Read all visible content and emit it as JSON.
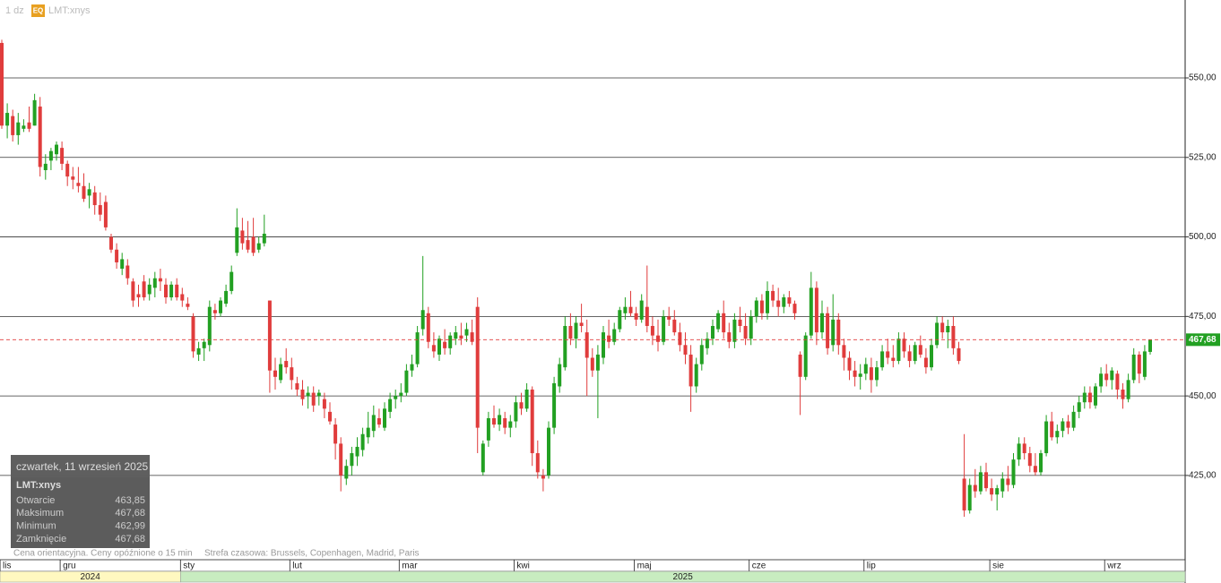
{
  "chart_data": {
    "type": "candlestick",
    "title": "1 dz",
    "badge": "EQ",
    "symbol": "LMT:xnys",
    "up_color": "#22a022",
    "down_color": "#e03c3c",
    "grid": true,
    "ylim": [
      398.5,
      574.5
    ],
    "yticks": [
      {
        "value": 425,
        "label": "425,00"
      },
      {
        "value": 450,
        "label": "450,00"
      },
      {
        "value": 475,
        "label": "475,00"
      },
      {
        "value": 500,
        "label": "500,00"
      },
      {
        "value": 525,
        "label": "525,00"
      },
      {
        "value": 550,
        "label": "550,00"
      }
    ],
    "last_price": {
      "value": 467.68,
      "label": "467,68"
    },
    "xticks": [
      {
        "value": 0,
        "label": "lis"
      },
      {
        "value": 11,
        "label": "gru"
      },
      {
        "value": 33,
        "label": "sty"
      },
      {
        "value": 53,
        "label": "lut"
      },
      {
        "value": 73,
        "label": "mar"
      },
      {
        "value": 94,
        "label": "kwi"
      },
      {
        "value": 116,
        "label": "maj"
      },
      {
        "value": 137,
        "label": "cze"
      },
      {
        "value": 158,
        "label": "lip"
      },
      {
        "value": 181,
        "label": "sie"
      },
      {
        "value": 202,
        "label": "wrz"
      }
    ],
    "years": [
      {
        "value": 0,
        "label": "2024"
      },
      {
        "value": 33,
        "label": "2025"
      }
    ],
    "ohlc": [
      [
        561,
        562,
        534,
        535
      ],
      [
        535,
        542,
        531,
        539
      ],
      [
        538,
        540,
        530,
        532
      ],
      [
        532,
        539,
        529,
        536
      ],
      [
        534,
        537,
        533,
        535
      ],
      [
        536,
        541,
        533,
        534
      ],
      [
        535,
        545,
        535,
        543
      ],
      [
        541,
        544,
        519,
        522
      ],
      [
        521,
        526,
        518,
        523
      ],
      [
        524,
        528,
        521,
        527
      ],
      [
        526,
        530,
        524,
        529
      ],
      [
        528,
        530,
        521,
        523
      ],
      [
        523,
        524,
        516,
        519
      ],
      [
        519,
        522,
        515,
        518
      ],
      [
        517,
        522,
        514,
        516
      ],
      [
        516,
        520,
        511,
        512
      ],
      [
        513,
        517,
        509,
        515
      ],
      [
        514,
        516,
        507,
        510
      ],
      [
        510,
        514,
        505,
        507
      ],
      [
        511,
        513,
        502,
        503
      ],
      [
        500,
        501,
        495,
        496
      ],
      [
        496,
        498,
        490,
        492
      ],
      [
        490,
        495,
        488,
        493
      ],
      [
        491,
        493,
        485,
        487
      ],
      [
        486,
        487,
        478,
        480
      ],
      [
        482,
        485,
        478,
        481
      ],
      [
        486,
        488,
        480,
        481
      ],
      [
        482,
        487,
        480,
        485
      ],
      [
        484,
        489,
        481,
        487
      ],
      [
        487,
        490,
        483,
        486
      ],
      [
        485,
        487,
        479,
        481
      ],
      [
        481,
        486,
        480,
        485
      ],
      [
        485,
        487,
        480,
        481
      ],
      [
        482,
        484,
        478,
        480
      ],
      [
        479,
        481,
        477,
        478
      ],
      [
        475,
        476,
        462,
        464
      ],
      [
        463,
        467,
        461,
        465
      ],
      [
        465,
        468,
        461,
        467
      ],
      [
        466,
        480,
        464,
        478
      ],
      [
        477,
        479,
        474,
        476
      ],
      [
        476,
        481,
        475,
        480
      ],
      [
        479,
        485,
        478,
        483
      ],
      [
        483,
        491,
        482,
        489
      ],
      [
        495,
        509,
        494,
        503
      ],
      [
        502,
        506,
        496,
        498
      ],
      [
        499,
        505,
        495,
        496
      ],
      [
        500,
        506,
        494,
        495
      ],
      [
        496,
        500,
        495,
        498
      ],
      [
        498,
        507,
        497,
        501
      ],
      [
        480,
        480,
        451,
        458
      ],
      [
        458,
        462,
        452,
        456
      ],
      [
        455,
        462,
        454,
        460
      ],
      [
        461,
        465,
        457,
        459
      ],
      [
        459,
        462,
        452,
        455
      ],
      [
        454,
        456,
        450,
        452
      ],
      [
        452,
        455,
        447,
        449
      ],
      [
        450,
        453,
        446,
        451
      ],
      [
        451,
        453,
        445,
        447
      ],
      [
        450,
        452,
        447,
        451
      ],
      [
        449,
        451,
        443,
        446
      ],
      [
        445,
        448,
        441,
        442
      ],
      [
        441,
        443,
        430,
        435
      ],
      [
        435,
        437,
        420,
        425
      ],
      [
        424,
        430,
        422,
        428
      ],
      [
        428,
        434,
        425,
        432
      ],
      [
        431,
        437,
        428,
        434
      ],
      [
        433,
        440,
        431,
        438
      ],
      [
        437,
        445,
        435,
        440
      ],
      [
        439,
        447,
        437,
        444
      ],
      [
        443,
        446,
        440,
        441
      ],
      [
        440,
        448,
        439,
        446
      ],
      [
        445,
        451,
        443,
        449
      ],
      [
        449,
        452,
        446,
        450
      ],
      [
        450,
        454,
        448,
        451
      ],
      [
        451,
        460,
        450,
        458
      ],
      [
        458,
        463,
        456,
        460
      ],
      [
        460,
        472,
        459,
        470
      ],
      [
        471,
        494,
        469,
        477
      ],
      [
        476,
        478,
        465,
        467
      ],
      [
        466,
        470,
        462,
        464
      ],
      [
        463,
        469,
        461,
        468
      ],
      [
        467,
        471,
        463,
        465
      ],
      [
        465,
        470,
        463,
        469
      ],
      [
        468,
        472,
        466,
        470
      ],
      [
        469,
        473,
        466,
        468
      ],
      [
        469,
        473,
        467,
        471
      ],
      [
        470,
        474,
        466,
        467
      ],
      [
        478,
        481,
        432,
        440
      ],
      [
        426,
        436,
        425,
        435
      ],
      [
        436,
        445,
        434,
        443
      ],
      [
        443,
        447,
        440,
        441
      ],
      [
        441,
        446,
        439,
        444
      ],
      [
        443,
        445,
        438,
        440
      ],
      [
        440,
        444,
        437,
        442
      ],
      [
        442,
        450,
        440,
        448
      ],
      [
        448,
        451,
        444,
        446
      ],
      [
        446,
        454,
        445,
        452
      ],
      [
        452,
        453,
        428,
        432
      ],
      [
        432,
        436,
        424,
        426
      ],
      [
        425,
        427,
        420,
        424
      ],
      [
        425,
        442,
        424,
        440
      ],
      [
        440,
        456,
        438,
        454
      ],
      [
        453,
        462,
        451,
        460
      ],
      [
        459,
        475,
        458,
        472
      ],
      [
        472,
        476,
        466,
        468
      ],
      [
        468,
        475,
        465,
        473
      ],
      [
        473,
        479,
        470,
        472
      ],
      [
        470,
        474,
        450,
        462
      ],
      [
        462,
        465,
        456,
        458
      ],
      [
        458,
        466,
        443,
        463
      ],
      [
        462,
        472,
        460,
        470
      ],
      [
        469,
        474,
        465,
        467
      ],
      [
        467,
        473,
        466,
        471
      ],
      [
        471,
        478,
        470,
        477
      ],
      [
        476,
        481,
        474,
        478
      ],
      [
        478,
        483,
        475,
        476
      ],
      [
        476,
        478,
        472,
        474
      ],
      [
        474,
        482,
        473,
        480
      ],
      [
        478,
        491,
        470,
        472
      ],
      [
        472,
        475,
        466,
        469
      ],
      [
        469,
        474,
        464,
        467
      ],
      [
        467,
        477,
        466,
        475
      ],
      [
        475,
        478,
        472,
        474
      ],
      [
        474,
        477,
        469,
        470
      ],
      [
        470,
        473,
        464,
        466
      ],
      [
        466,
        470,
        460,
        463
      ],
      [
        463,
        466,
        445,
        453
      ],
      [
        453,
        462,
        451,
        460
      ],
      [
        460,
        468,
        458,
        466
      ],
      [
        465,
        470,
        463,
        468
      ],
      [
        468,
        474,
        466,
        472
      ],
      [
        471,
        477,
        470,
        476
      ],
      [
        476,
        480,
        468,
        470
      ],
      [
        470,
        473,
        465,
        467
      ],
      [
        467,
        476,
        465,
        474
      ],
      [
        474,
        478,
        470,
        472
      ],
      [
        472,
        476,
        466,
        468
      ],
      [
        468,
        477,
        466,
        475
      ],
      [
        475,
        481,
        473,
        480
      ],
      [
        480,
        482,
        474,
        476
      ],
      [
        476,
        486,
        474,
        483
      ],
      [
        483,
        485,
        478,
        480
      ],
      [
        480,
        484,
        475,
        478
      ],
      [
        478,
        482,
        476,
        481
      ],
      [
        481,
        483,
        478,
        479
      ],
      [
        479,
        480,
        474,
        476
      ],
      [
        463,
        464,
        444,
        456
      ],
      [
        456,
        470,
        455,
        469
      ],
      [
        469,
        489,
        468,
        484
      ],
      [
        484,
        486,
        466,
        470
      ],
      [
        470,
        480,
        468,
        476
      ],
      [
        476,
        478,
        463,
        465
      ],
      [
        466,
        482,
        464,
        474
      ],
      [
        474,
        476,
        463,
        466
      ],
      [
        466,
        468,
        458,
        462
      ],
      [
        462,
        464,
        455,
        458
      ],
      [
        458,
        461,
        453,
        456
      ],
      [
        456,
        460,
        452,
        457
      ],
      [
        457,
        462,
        455,
        460
      ],
      [
        459,
        462,
        451,
        455
      ],
      [
        455,
        461,
        453,
        459
      ],
      [
        459,
        466,
        458,
        464
      ],
      [
        464,
        468,
        460,
        462
      ],
      [
        462,
        466,
        459,
        461
      ],
      [
        461,
        470,
        460,
        468
      ],
      [
        468,
        470,
        462,
        464
      ],
      [
        464,
        466,
        459,
        461
      ],
      [
        461,
        467,
        460,
        466
      ],
      [
        466,
        469,
        462,
        463
      ],
      [
        462,
        465,
        457,
        459
      ],
      [
        459,
        468,
        458,
        466
      ],
      [
        466,
        475,
        465,
        473
      ],
      [
        473,
        475,
        468,
        470
      ],
      [
        470,
        474,
        465,
        472
      ],
      [
        472,
        475,
        463,
        465
      ],
      [
        465,
        467,
        460,
        461
      ],
      [
        424,
        438,
        412,
        414
      ],
      [
        414,
        424,
        413,
        422
      ],
      [
        422,
        427,
        418,
        420
      ],
      [
        420,
        428,
        419,
        426
      ],
      [
        426,
        429,
        420,
        421
      ],
      [
        421,
        424,
        417,
        419
      ],
      [
        419,
        422,
        414,
        421
      ],
      [
        420,
        426,
        418,
        424
      ],
      [
        424,
        428,
        420,
        422
      ],
      [
        422,
        432,
        421,
        430
      ],
      [
        430,
        437,
        428,
        435
      ],
      [
        435,
        437,
        430,
        432
      ],
      [
        432,
        434,
        426,
        428
      ],
      [
        428,
        432,
        425,
        426
      ],
      [
        426,
        433,
        425,
        432
      ],
      [
        432,
        444,
        431,
        442
      ],
      [
        442,
        445,
        436,
        437
      ],
      [
        437,
        441,
        435,
        439
      ],
      [
        439,
        443,
        437,
        442
      ],
      [
        442,
        444,
        438,
        440
      ],
      [
        440,
        447,
        439,
        445
      ],
      [
        445,
        450,
        443,
        448
      ],
      [
        448,
        453,
        446,
        451
      ],
      [
        451,
        453,
        446,
        448
      ],
      [
        447,
        454,
        446,
        453
      ],
      [
        453,
        459,
        451,
        457
      ],
      [
        457,
        460,
        453,
        455
      ],
      [
        455,
        459,
        452,
        458
      ],
      [
        457,
        458,
        449,
        452
      ],
      [
        452,
        454,
        446,
        449
      ],
      [
        449,
        457,
        448,
        455
      ],
      [
        455,
        465,
        454,
        463
      ],
      [
        463,
        464,
        454,
        457
      ],
      [
        456,
        466,
        455,
        464
      ],
      [
        463.85,
        467.68,
        462.99,
        467.68
      ]
    ],
    "info": {
      "date": "czwartek, 11 wrzesień 2025",
      "symbol": "LMT:xnys",
      "rows": [
        [
          "Otwarcie",
          "463,85"
        ],
        [
          "Maksimum",
          "467,68"
        ],
        [
          "Minimum",
          "462,99"
        ],
        [
          "Zamknięcie",
          "467,68"
        ]
      ]
    },
    "notes": [
      "Cena orientacyjna. Ceny opóźnione o 15 min",
      "Strefa czasowa: Brussels, Copenhagen, Madrid, Paris"
    ]
  }
}
